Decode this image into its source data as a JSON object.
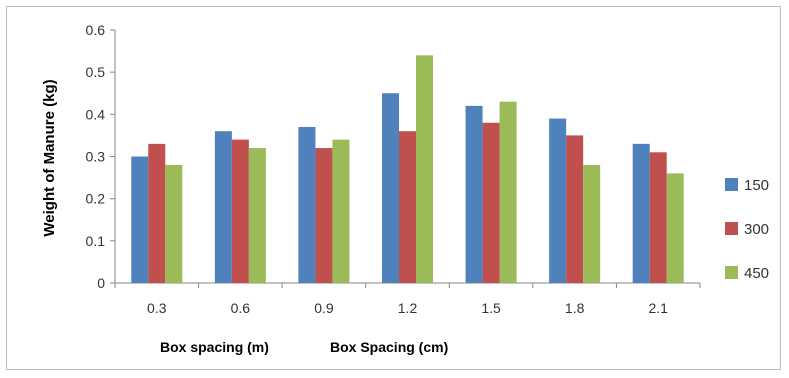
{
  "chart_data": {
    "type": "bar",
    "categories": [
      "0.3",
      "0.6",
      "0.9",
      "1.2",
      "1.5",
      "1.8",
      "2.1"
    ],
    "series": [
      {
        "name": "150",
        "color": "#4f81bd",
        "values": [
          0.3,
          0.36,
          0.37,
          0.45,
          0.42,
          0.39,
          0.33
        ]
      },
      {
        "name": "300",
        "color": "#c0504d",
        "values": [
          0.33,
          0.34,
          0.32,
          0.36,
          0.38,
          0.35,
          0.31
        ]
      },
      {
        "name": "450",
        "color": "#9bbb59",
        "values": [
          0.28,
          0.32,
          0.34,
          0.54,
          0.43,
          0.28,
          0.26
        ]
      }
    ],
    "ylabel": "Weight of Manure (kg)",
    "xlabel_1": "Box  spacing (m)",
    "xlabel_2": "Box Spacing (cm)",
    "ylim": [
      0,
      0.6
    ],
    "yticks": [
      "0",
      "0.1",
      "0.2",
      "0.3",
      "0.4",
      "0.5",
      "0.6"
    ],
    "grid": false,
    "legend": "right"
  }
}
